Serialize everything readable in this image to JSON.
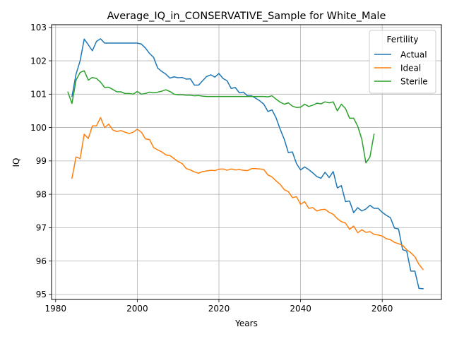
{
  "chart_data": {
    "type": "line",
    "title": "Average_IQ_in_CONSERVATIVE_Sample for White_Male",
    "xlabel": "Years",
    "ylabel": "IQ",
    "xlim": [
      1979,
      2074.5
    ],
    "ylim": [
      94.85,
      103.08
    ],
    "xticks": [
      1980,
      2000,
      2020,
      2040,
      2060
    ],
    "yticks": [
      95,
      96,
      97,
      98,
      99,
      100,
      101,
      102,
      103
    ],
    "grid": true,
    "legend": {
      "title": "Fertility",
      "position": "top-right"
    },
    "series": [
      {
        "name": "Actual",
        "color": "#1f77b4",
        "x": [
          1984,
          1985,
          1986,
          1987,
          1988,
          1989,
          1990,
          1991,
          1992,
          1993,
          1994,
          1995,
          1996,
          1997,
          1998,
          1999,
          2000,
          2001,
          2002,
          2003,
          2004,
          2005,
          2006,
          2007,
          2008,
          2009,
          2010,
          2011,
          2012,
          2013,
          2014,
          2015,
          2016,
          2017,
          2018,
          2019,
          2020,
          2021,
          2022,
          2023,
          2024,
          2025,
          2026,
          2027,
          2028,
          2029,
          2030,
          2031,
          2032,
          2033,
          2034,
          2035,
          2036,
          2037,
          2038,
          2039,
          2040,
          2041,
          2042,
          2043,
          2044,
          2045,
          2046,
          2047,
          2048,
          2049,
          2050,
          2051,
          2052,
          2053,
          2054,
          2055,
          2056,
          2057,
          2058,
          2059,
          2060,
          2061,
          2062,
          2063,
          2064,
          2065,
          2066,
          2067,
          2068,
          2069,
          2070
        ],
        "values": [
          100.93,
          101.6,
          102.0,
          102.65,
          102.48,
          102.3,
          102.58,
          102.66,
          102.53,
          102.53,
          102.53,
          102.53,
          102.53,
          102.53,
          102.53,
          102.53,
          102.53,
          102.5,
          102.38,
          102.22,
          102.1,
          101.78,
          101.68,
          101.6,
          101.48,
          101.52,
          101.49,
          101.5,
          101.45,
          101.46,
          101.27,
          101.27,
          101.4,
          101.53,
          101.58,
          101.51,
          101.62,
          101.47,
          101.4,
          101.17,
          101.2,
          101.04,
          101.06,
          100.95,
          100.95,
          100.88,
          100.8,
          100.7,
          100.48,
          100.53,
          100.29,
          99.95,
          99.65,
          99.25,
          99.27,
          98.92,
          98.73,
          98.82,
          98.74,
          98.64,
          98.53,
          98.48,
          98.66,
          98.5,
          98.68,
          98.19,
          98.26,
          97.78,
          97.8,
          97.45,
          97.6,
          97.5,
          97.56,
          97.67,
          97.58,
          97.58,
          97.46,
          97.37,
          97.3,
          96.99,
          96.96,
          96.34,
          96.3,
          95.7,
          95.7,
          95.18,
          95.17
        ]
      },
      {
        "name": "Ideal",
        "color": "#ff7f0e",
        "x": [
          1984,
          1985,
          1986,
          1987,
          1988,
          1989,
          1990,
          1991,
          1992,
          1993,
          1994,
          1995,
          1996,
          1997,
          1998,
          1999,
          2000,
          2001,
          2002,
          2003,
          2004,
          2005,
          2006,
          2007,
          2008,
          2009,
          2010,
          2011,
          2012,
          2013,
          2014,
          2015,
          2016,
          2017,
          2018,
          2019,
          2020,
          2021,
          2022,
          2023,
          2024,
          2025,
          2026,
          2027,
          2028,
          2029,
          2030,
          2031,
          2032,
          2033,
          2034,
          2035,
          2036,
          2037,
          2038,
          2039,
          2040,
          2041,
          2042,
          2043,
          2044,
          2045,
          2046,
          2047,
          2048,
          2049,
          2050,
          2051,
          2052,
          2053,
          2054,
          2055,
          2056,
          2057,
          2058,
          2059,
          2060,
          2061,
          2062,
          2063,
          2064,
          2065,
          2066,
          2067,
          2068,
          2069,
          2070
        ],
        "values": [
          98.48,
          99.12,
          99.07,
          99.8,
          99.67,
          100.05,
          100.05,
          100.3,
          100.0,
          100.1,
          99.93,
          99.88,
          99.91,
          99.86,
          99.82,
          99.86,
          99.95,
          99.86,
          99.66,
          99.64,
          99.4,
          99.33,
          99.27,
          99.18,
          99.16,
          99.07,
          98.98,
          98.92,
          98.77,
          98.73,
          98.67,
          98.63,
          98.68,
          98.7,
          98.72,
          98.71,
          98.75,
          98.76,
          98.72,
          98.76,
          98.73,
          98.74,
          98.72,
          98.71,
          98.77,
          98.77,
          98.76,
          98.74,
          98.58,
          98.52,
          98.4,
          98.3,
          98.14,
          98.08,
          97.9,
          97.93,
          97.7,
          97.78,
          97.58,
          97.6,
          97.5,
          97.54,
          97.55,
          97.46,
          97.4,
          97.27,
          97.18,
          97.14,
          96.95,
          97.05,
          96.85,
          96.94,
          96.86,
          96.88,
          96.8,
          96.78,
          96.75,
          96.67,
          96.64,
          96.56,
          96.52,
          96.47,
          96.34,
          96.25,
          96.13,
          95.9,
          95.75
        ]
      },
      {
        "name": "Sterile",
        "color": "#2ca02c",
        "x": [
          1983,
          1984,
          1985,
          1986,
          1987,
          1988,
          1989,
          1990,
          1991,
          1992,
          1993,
          1994,
          1995,
          1996,
          1997,
          1998,
          1999,
          2000,
          2001,
          2002,
          2003,
          2004,
          2005,
          2006,
          2007,
          2008,
          2009,
          2010,
          2011,
          2012,
          2013,
          2014,
          2015,
          2016,
          2017,
          2018,
          2019,
          2020,
          2021,
          2022,
          2023,
          2024,
          2025,
          2026,
          2027,
          2028,
          2029,
          2030,
          2031,
          2032,
          2033,
          2034,
          2035,
          2036,
          2037,
          2038,
          2039,
          2040,
          2041,
          2042,
          2043,
          2044,
          2045,
          2046,
          2047,
          2048,
          2049,
          2050,
          2051,
          2052,
          2053,
          2054,
          2055,
          2056,
          2057,
          2058
        ],
        "values": [
          101.06,
          100.72,
          101.42,
          101.65,
          101.7,
          101.42,
          101.5,
          101.47,
          101.36,
          101.2,
          101.21,
          101.14,
          101.07,
          101.07,
          101.02,
          101.02,
          101.0,
          101.08,
          101.0,
          101.02,
          101.06,
          101.04,
          101.06,
          101.09,
          101.13,
          101.08,
          101.0,
          100.98,
          100.98,
          100.97,
          100.97,
          100.95,
          100.96,
          100.94,
          100.93,
          100.93,
          100.93,
          100.93,
          100.93,
          100.93,
          100.93,
          100.93,
          100.93,
          100.93,
          100.93,
          100.93,
          100.93,
          100.93,
          100.93,
          100.92,
          100.95,
          100.85,
          100.76,
          100.7,
          100.74,
          100.64,
          100.6,
          100.61,
          100.7,
          100.63,
          100.67,
          100.73,
          100.71,
          100.77,
          100.74,
          100.77,
          100.5,
          100.7,
          100.57,
          100.28,
          100.28,
          100.04,
          99.65,
          98.94,
          99.12,
          99.8
        ]
      }
    ]
  }
}
